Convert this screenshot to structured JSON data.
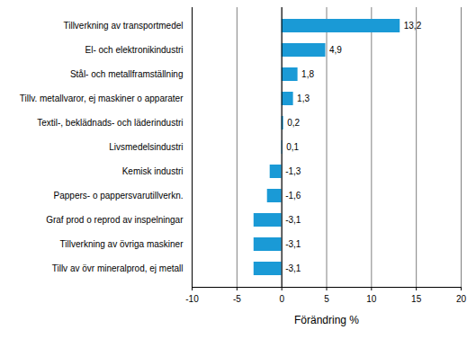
{
  "chart_data": {
    "type": "bar",
    "orientation": "horizontal",
    "categories": [
      "Tillverkning av transportmedel",
      "El- och elektronikindustri",
      "Stål- och metallframställning",
      "Tillv. metallvaror, ej maskiner o apparater",
      "Textil-, beklädnads- och läderindustri",
      "Livsmedelsindustri",
      "Kemisk industri",
      "Pappers- o pappersvarutillverkn.",
      "Graf prod o reprod av inspelningar",
      "Tillverkning av övriga maskiner",
      "Tillv av övr mineralprod, ej metall"
    ],
    "values": [
      13.2,
      4.9,
      1.8,
      1.3,
      0.2,
      0.1,
      -1.3,
      -1.6,
      -3.1,
      -3.1,
      -3.1
    ],
    "value_labels": [
      "13,2",
      "4,9",
      "1,8",
      "1,3",
      "0,2",
      "0,1",
      "-1,3",
      "-1,6",
      "-3,1",
      "-3,1",
      "-3,1"
    ],
    "color": "#1a9ad6",
    "x_label": "Förändring %",
    "xlim": [
      -10,
      20
    ],
    "xticks": [
      -10,
      -5,
      0,
      5,
      10,
      15,
      20
    ],
    "grid": true,
    "data_labels": true
  }
}
